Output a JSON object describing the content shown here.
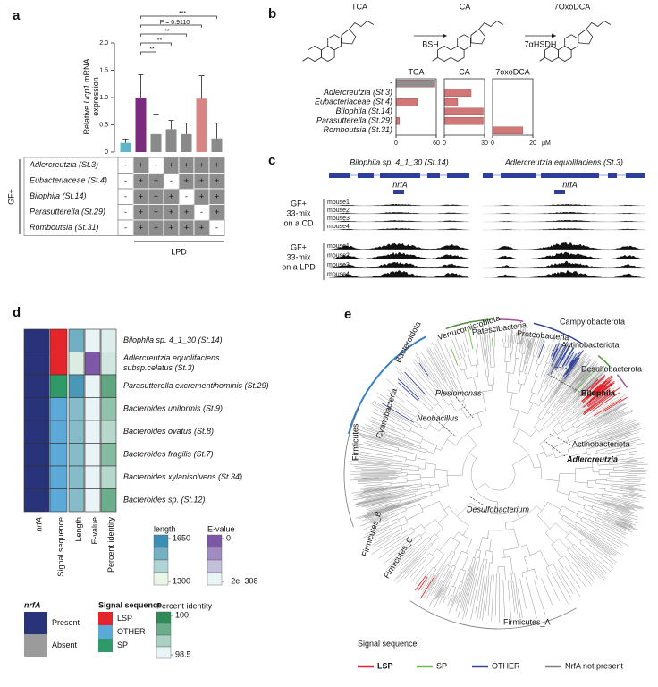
{
  "panel_labels": [
    "a",
    "b",
    "c",
    "d",
    "e"
  ],
  "chart_data": [
    {
      "type": "bar",
      "ylabel_lines": [
        [
          "Relative ",
          "Ucp1",
          " mRNA"
        ],
        [
          "expression"
        ]
      ],
      "values": [
        0.17,
        1.0,
        0.33,
        0.42,
        0.33,
        0.98,
        0.25
      ],
      "errors": [
        0.07,
        0.42,
        0.35,
        0.16,
        0.2,
        0.42,
        0.28
      ],
      "colors": [
        "#5bb7c6",
        "#7a2b7e",
        "#8a8a8a",
        "#8a8a8a",
        "#8a8a8a",
        "#d88585",
        "#8a8a8a"
      ],
      "ylim": [
        0,
        2
      ],
      "yticks": [
        0,
        0.5,
        {
          "value": 1,
          "label": "1.0"
        },
        1.5,
        {
          "value": 2,
          "label": "2.0"
        }
      ],
      "annotations": [
        "**",
        "**",
        "**",
        "P = 0.9110",
        "***"
      ]
    },
    {
      "type": "hbar",
      "title": "TCA",
      "categories": [
        "-",
        "Adlercreutzia (St.3)",
        "Eubacteriaceae (St.4)",
        "Bilophila (St.14)",
        "Parasutterella (St.29)",
        "Romboutsia (St.31)"
      ],
      "values": [
        58,
        0,
        32,
        0,
        5,
        0
      ],
      "colors": [
        "#8e8e8e",
        "#d07878",
        "#d07878",
        "#d07878",
        "#d07878",
        "#d07878"
      ],
      "xlim": [
        0,
        60
      ],
      "xticks": [
        0,
        60
      ]
    },
    {
      "type": "hbar",
      "title": "CA",
      "values": [
        0,
        20,
        10,
        29,
        29,
        0
      ],
      "color": "#d07878",
      "xlim": [
        0,
        30
      ],
      "xticks": [
        0,
        30
      ]
    },
    {
      "type": "hbar",
      "title": "7oxoDCA",
      "values": [
        0,
        0,
        0,
        0,
        0,
        15
      ],
      "color": "#d07878",
      "xlim": [
        0,
        20
      ],
      "xticks": [
        0,
        20
      ],
      "unit": "μM"
    },
    {
      "type": "heatmap",
      "categories": [
        [
          "Bilophila sp. 4_1_30 (St.14)"
        ],
        [
          "Adlercreutzia equolifaciens",
          "subsp.celatus (St.3)"
        ],
        [
          "Parasutterella excrementihominis (St.29)"
        ],
        [
          "Bacteroides uniformis (St.9)"
        ],
        [
          "Bacteroides ovatus (St.8)"
        ],
        [
          "Bacteroides fragilis (St.7)"
        ],
        [
          "Bacteroides xylanisolvens (St.34)"
        ],
        [
          "Bacteroides sp. (St.12)"
        ]
      ],
      "columns": [
        "nrfA",
        "Signal sequence",
        "Length",
        "E-value",
        "Percent identity"
      ],
      "nrfA": [
        "Present",
        "Present",
        "Present",
        "Present",
        "Present",
        "Present",
        "Present",
        "Present"
      ],
      "signal_sequence": [
        "LSP",
        "LSP",
        "SP",
        "OTHER",
        "OTHER",
        "OTHER",
        "OTHER",
        "OTHER"
      ],
      "length": [
        1540,
        1330,
        1620,
        1500,
        1500,
        1500,
        1500,
        1500
      ],
      "e_value": [
        -2e-308,
        0,
        -2e-308,
        -2e-308,
        -2e-308,
        -2e-308,
        -2e-308,
        -2e-308
      ],
      "percent_identity": [
        98.6,
        98.7,
        99.6,
        99.2,
        98.9,
        99.3,
        98.9,
        99.5
      ]
    }
  ],
  "table_a": {
    "group_label": "GF+",
    "condition": "LPD",
    "rows": [
      {
        "name": "Adlercreutzia (St.3)",
        "cells": [
          "-",
          "+",
          "-",
          "+",
          "+",
          "+",
          "+"
        ]
      },
      {
        "name": "Eubacteriaceae (St.4)",
        "cells": [
          "-",
          "+",
          "+",
          "-",
          "+",
          "+",
          "+"
        ]
      },
      {
        "name": "Bilophila (St.14)",
        "cells": [
          "-",
          "+",
          "+",
          "+",
          "-",
          "+",
          "+"
        ]
      },
      {
        "name": "Parasutterella (St.29)",
        "cells": [
          "-",
          "+",
          "+",
          "+",
          "+",
          "-",
          "+"
        ]
      },
      {
        "name": "Romboutsia (St.31)",
        "cells": [
          "-",
          "+",
          "+",
          "+",
          "+",
          "+",
          "-"
        ]
      }
    ]
  },
  "structures_b": {
    "compounds": [
      "TCA",
      "CA",
      "7OxoDCA"
    ],
    "enzymes": [
      "BSH",
      "7αHSDH"
    ]
  },
  "tracks_c": {
    "tracks": [
      {
        "title": "Bilophila sp. 4_1_30 (St.14)",
        "gene": "nrfA"
      },
      {
        "title": "Adlercreutzia equolifaciens (St.3)",
        "gene": "nrfA"
      }
    ],
    "groups": [
      {
        "label": [
          "GF+",
          "33-mix",
          "on a CD"
        ],
        "mice": [
          "mouse1",
          "mouse2",
          "mouse3",
          "mouse4"
        ]
      },
      {
        "label": [
          "GF+",
          "33-mix",
          "on a LPD"
        ],
        "mice": [
          "mouse1",
          "mouse2",
          "mouse3",
          "mouse4"
        ]
      }
    ]
  },
  "legend_d": {
    "nrfA": {
      "title": "nrfA",
      "items": [
        {
          "label": "Present",
          "color": "#28337a"
        },
        {
          "label": "Absent",
          "color": "#9b9b9b"
        }
      ]
    },
    "signal_sequence": {
      "title": "Signal sequence",
      "items": [
        {
          "label": "LSP",
          "color": "#e4262c"
        },
        {
          "label": "OTHER",
          "color": "#5aa9d6"
        },
        {
          "label": "SP",
          "color": "#2f9a68"
        }
      ]
    },
    "length": {
      "title": "length",
      "ticks": [
        1650,
        1300
      ],
      "colors": [
        "#3b8fb4",
        "#eaf5e6"
      ]
    },
    "e_value": {
      "title": "E-value",
      "ticks": [
        0,
        {
          "value": -2e-308,
          "label": "−2e−308"
        }
      ],
      "colors": [
        "#7d58a8",
        "#e8f4f6"
      ]
    },
    "percent_identity": {
      "title": "Percent identity",
      "ticks": [
        100,
        98.5
      ],
      "colors": [
        "#2e8b57",
        "#e8f4f6"
      ]
    }
  },
  "tree_e": {
    "clades": [
      {
        "label": "Verrucomicrobiota",
        "color": "#4e8f3a"
      },
      {
        "label": "Patescibacteria",
        "color": "#a3509c"
      },
      {
        "label": "Proteobacteria",
        "color": "#3447a0"
      },
      {
        "label": "Campylobacterota",
        "color": "#5a9b3c"
      },
      {
        "label": "Actinobacteriota",
        "color": "#9450a6"
      },
      {
        "label": "Desulfobacterota",
        "color": "#9450a6"
      },
      {
        "label": "Bilophila",
        "color": "#e0262a"
      },
      {
        "label": "Bacteroidota",
        "color": "#3b7fc4"
      },
      {
        "label": "Plesiomonas",
        "color": "#e0262a"
      },
      {
        "label": "Neobacillus",
        "color": "#e0262a"
      },
      {
        "label": "Cyanobacteria",
        "color": "#333333"
      },
      {
        "label": "Actinobacteriota",
        "color": "#9450a6"
      },
      {
        "label": "Adlercreutzia",
        "color": "#e0262a"
      },
      {
        "label": "Firmicutes",
        "color": "#777777"
      },
      {
        "label": "Firmicutes_B",
        "color": "#555555"
      },
      {
        "label": "Firmicutes_C",
        "color": "#555555"
      },
      {
        "label": "Desulfobacterium",
        "color": "#e0262a"
      },
      {
        "label": "Firmicutes_A",
        "color": "#777777"
      }
    ],
    "legend_title": "Signal sequence:",
    "legend": [
      {
        "label": "LSP",
        "color": "#e4262c"
      },
      {
        "label": "SP",
        "color": "#6cc04a"
      },
      {
        "label": "OTHER",
        "color": "#3447a0"
      },
      {
        "label": "NrfA not present",
        "color": "#808080"
      }
    ]
  }
}
